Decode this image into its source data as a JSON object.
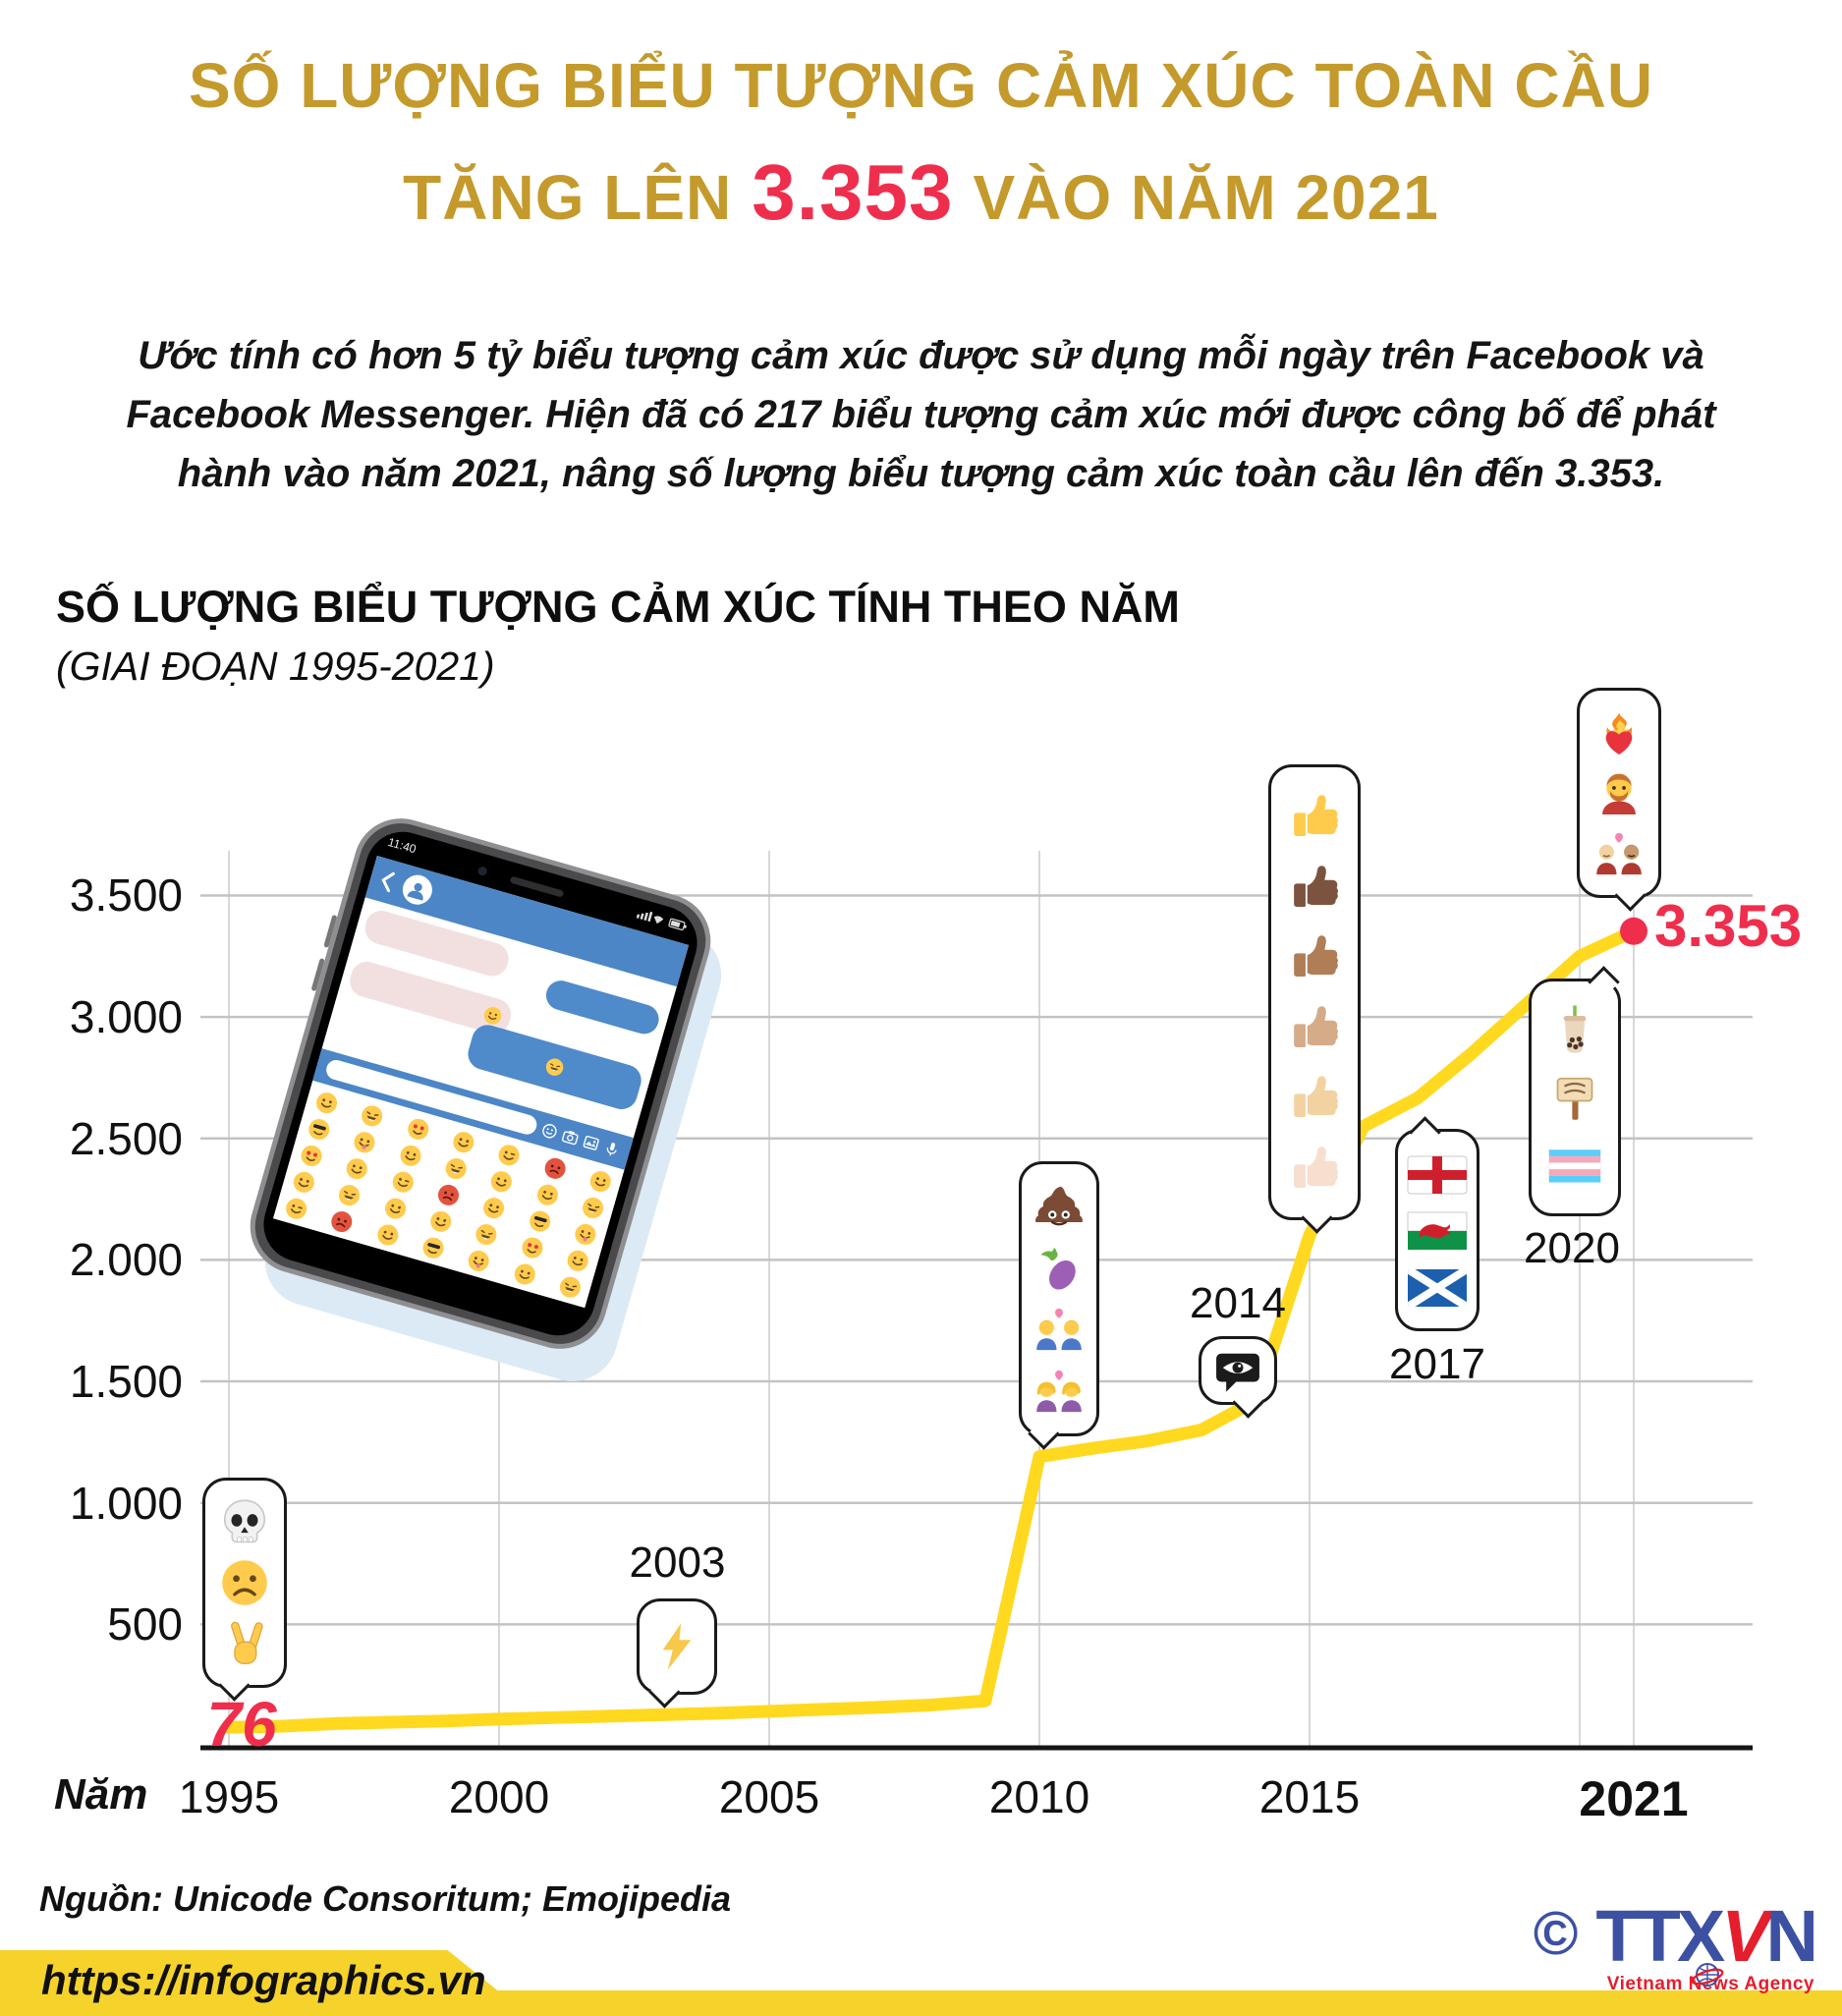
{
  "colors": {
    "title_gold": "#C49A2C",
    "accent_red": "#EF2E4D",
    "line_yellow": "#FFD91F",
    "footer_yellow": "#F6D32B",
    "phone_blue": "#4C86C6",
    "logo_blue": "#3D51A3",
    "logo_red": "#E41E2D"
  },
  "header": {
    "title_line1": "SỐ LƯỢNG BIỂU TƯỢNG CẢM XÚC TOÀN CẦU",
    "title_line2_prefix": "TĂNG LÊN",
    "title_line2_highlight": "3.353",
    "title_line2_suffix": "VÀO NĂM 2021",
    "intro": "Ước tính có hơn 5 tỷ biểu tượng cảm xúc được sử dụng mỗi ngày trên Facebook và Facebook Messenger. Hiện đã có 217 biểu tượng cảm xúc mới được công bố để phát hành vào năm 2021, nâng số lượng biểu tượng cảm xúc toàn cầu lên đến 3.353."
  },
  "chart_data": {
    "type": "line",
    "title": "SỐ LƯỢNG BIỂU TƯỢNG CẢM XÚC TÍNH THEO NĂM",
    "subtitle": "(GIAI ĐOẠN 1995-2021)",
    "xlabel": "Năm",
    "ylabel": "",
    "x": [
      1995,
      1996,
      1997,
      1998,
      1999,
      2000,
      2001,
      2002,
      2003,
      2004,
      2005,
      2006,
      2007,
      2008,
      2009,
      2010,
      2011,
      2012,
      2013,
      2014,
      2015,
      2016,
      2017,
      2018,
      2019,
      2020,
      2021
    ],
    "y": [
      76,
      81,
      92,
      97,
      102,
      110,
      116,
      122,
      128,
      134,
      142,
      150,
      158,
      168,
      185,
      1190,
      1225,
      1255,
      1300,
      1420,
      2100,
      2550,
      2666,
      2850,
      3050,
      3250,
      3353
    ],
    "xlim": [
      1995,
      2021
    ],
    "ylim": [
      0,
      3620
    ],
    "grid": true,
    "legend": false,
    "line_color": "#FFD91F",
    "accent_color": "#EF2E4D",
    "y_ticks_values": [
      3500,
      3000,
      2500,
      2000,
      1500,
      1000,
      500
    ],
    "y_tick_labels": [
      "3.500",
      "3.000",
      "2.500",
      "2.000",
      "1.500",
      "1.000",
      "500"
    ],
    "x_tick_years": [
      1995,
      2000,
      2005,
      2010,
      2015,
      2021
    ],
    "x_tick_labels": [
      "1995",
      "2000",
      "2005",
      "2010",
      "2015",
      "2021"
    ],
    "x_grid_years": [
      1995,
      2000,
      2005,
      2010,
      2015,
      2020,
      2021
    ],
    "start_point": {
      "year": 1995,
      "value": 76,
      "label": "76"
    },
    "end_point": {
      "year": 2021,
      "value": 3353,
      "label": "3.353"
    },
    "callouts": [
      {
        "year": 1995,
        "year_label": "",
        "emojis": [
          "skull",
          "frowning-face",
          "victory-hand"
        ]
      },
      {
        "year": 2003,
        "year_label": "2003",
        "emojis": [
          "high-voltage"
        ]
      },
      {
        "year": 2010,
        "year_label": "",
        "emojis": [
          "pile-of-poo",
          "eggplant",
          "couple-heart-men",
          "couple-heart-women"
        ]
      },
      {
        "year": 2014,
        "year_label": "2014",
        "emojis": [
          "eye-in-speech-bubble"
        ]
      },
      {
        "year": 2015,
        "year_label": "",
        "emojis": [
          "thumbs-up",
          "thumbs-up-dark",
          "thumbs-up-medium-dark",
          "thumbs-up-medium",
          "thumbs-up-medium-light",
          "thumbs-up-light"
        ]
      },
      {
        "year": 2017,
        "year_label": "2017",
        "emojis": [
          "flag-england",
          "flag-wales",
          "flag-scotland"
        ]
      },
      {
        "year": 2020,
        "year_label": "2020",
        "emojis": [
          "bubble-tea",
          "placard",
          "transgender-flag"
        ]
      },
      {
        "year": 2021,
        "year_label": "",
        "emojis": [
          "heart-on-fire",
          "person-beard",
          "couple-heart-men-medium-skin"
        ]
      }
    ]
  },
  "phone": {
    "status_time": "11:40"
  },
  "footer": {
    "source": "Nguồn: Unicode Consoritum; Emojipedia",
    "url": "https://infographics.vn",
    "logo": {
      "copyright_symbol": "©",
      "text_blue_left": "TTX",
      "text_red": "V",
      "text_blue_right": "N",
      "tagline": "Vietnam News Agency"
    }
  }
}
